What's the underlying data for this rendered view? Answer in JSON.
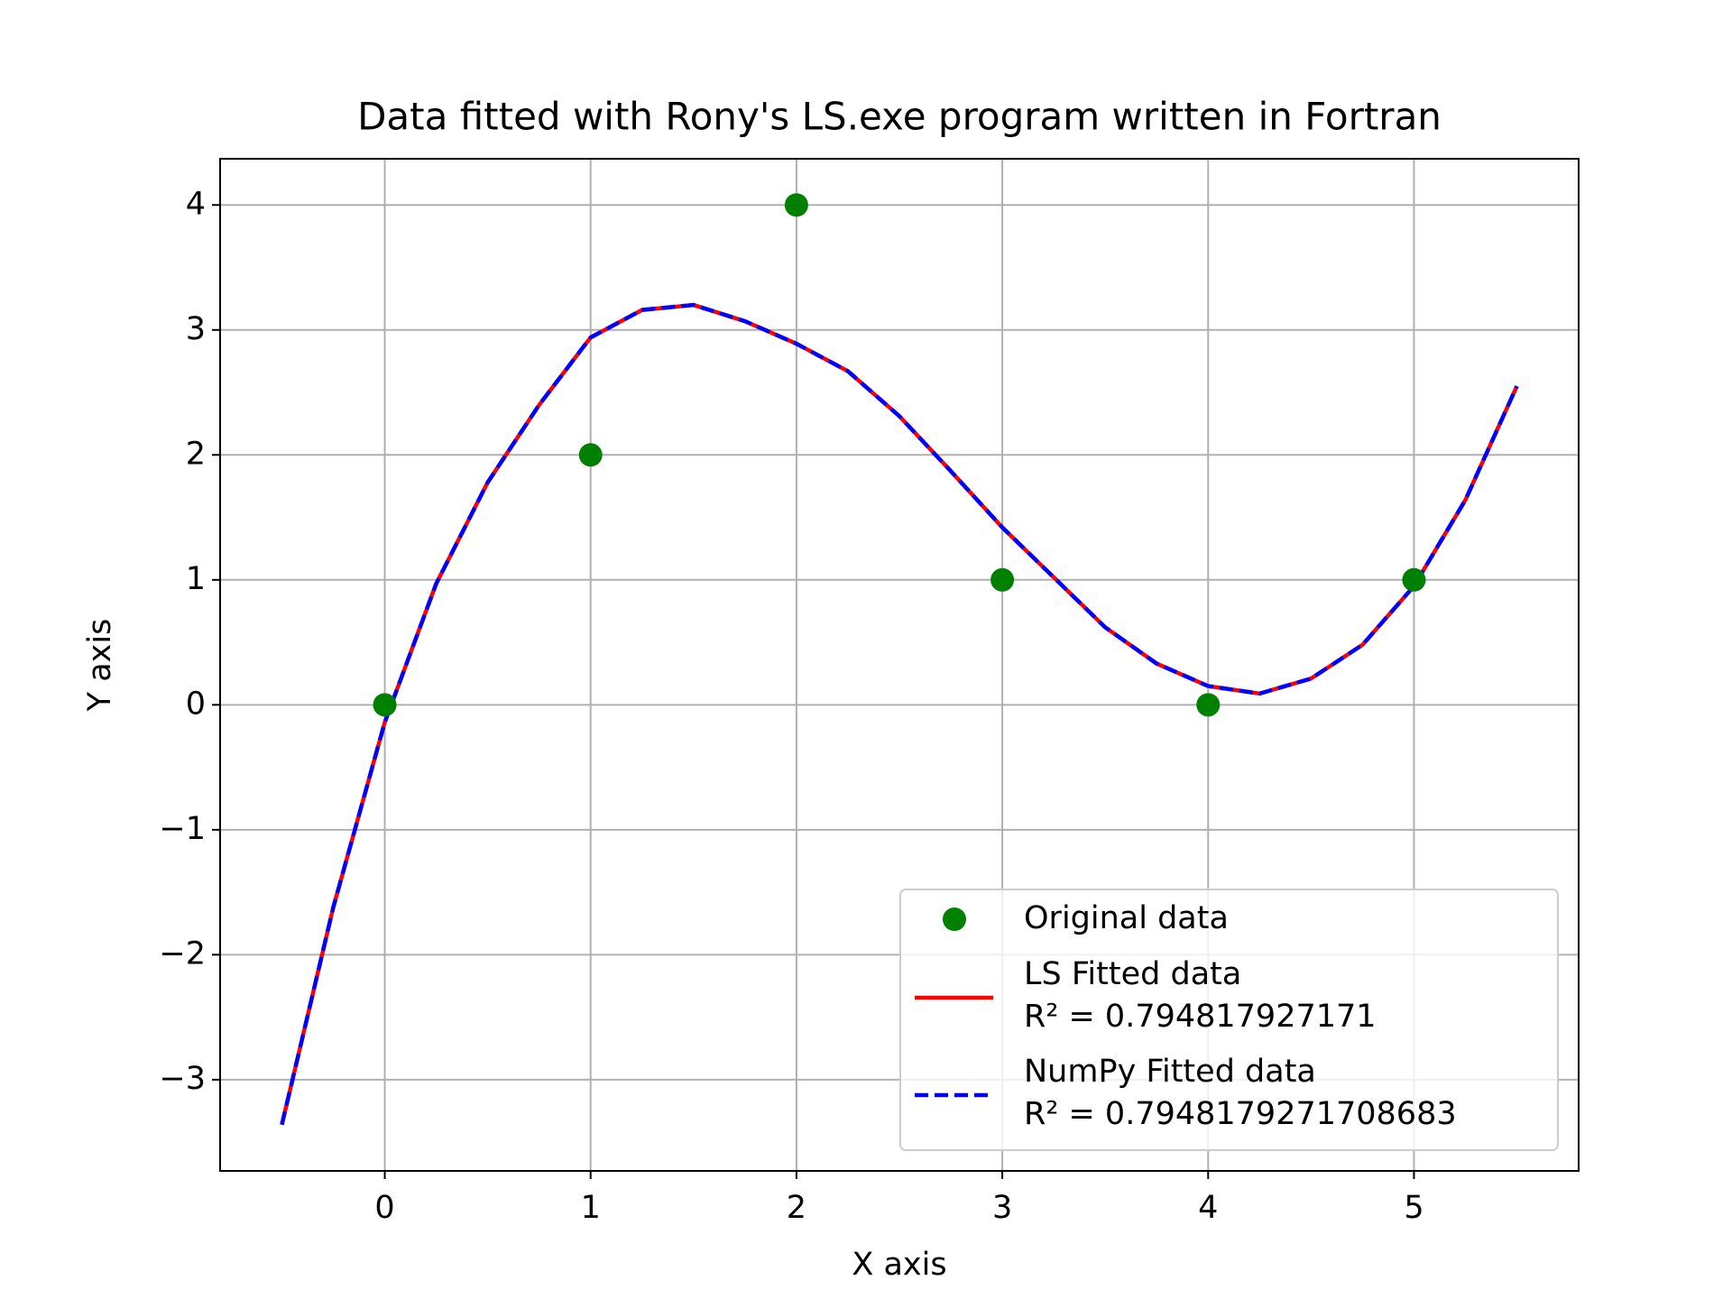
{
  "chart_data": {
    "type": "scatter-line",
    "title": "Data fitted with Rony's LS.exe program written in Fortran",
    "xlabel": "X axis",
    "ylabel": "Y axis",
    "xlim": [
      -0.8,
      5.8
    ],
    "ylim": [
      -3.73,
      4.37
    ],
    "xticks": [
      0,
      1,
      2,
      3,
      4,
      5
    ],
    "yticks": [
      {
        "value": -3,
        "label": "−3"
      },
      {
        "value": -2,
        "label": "−2"
      },
      {
        "value": -1,
        "label": "−1"
      },
      0,
      1,
      2,
      3,
      4
    ],
    "grid": true,
    "legend": "lower right",
    "points": {
      "name": "Original data",
      "color": "#008000",
      "x": [
        0,
        1,
        2,
        3,
        4,
        5
      ],
      "values": [
        0,
        2,
        4,
        1,
        0,
        1
      ]
    },
    "series": [
      {
        "name": "LS Fitted data",
        "annotation": "R² = 0.794817927171",
        "color": "#ff0000",
        "dashed": false,
        "x": [
          -0.5,
          -0.25,
          0,
          0.25,
          0.5,
          0.75,
          1,
          1.25,
          1.5,
          1.75,
          2,
          2.25,
          2.5,
          2.75,
          3,
          3.25,
          3.5,
          3.75,
          4,
          4.25,
          4.5,
          4.75,
          5,
          5.25,
          5.5
        ],
        "values": [
          -3.36,
          -1.62,
          -0.14,
          0.97,
          1.78,
          2.4,
          2.94,
          3.16,
          3.2,
          3.07,
          2.89,
          2.67,
          2.31,
          1.87,
          1.42,
          1.02,
          0.62,
          0.33,
          0.15,
          0.09,
          0.21,
          0.48,
          0.95,
          1.64,
          2.55
        ]
      },
      {
        "name": "NumPy Fitted data",
        "annotation": "R² = 0.7948179271708683",
        "color": "#0000ff",
        "dashed": true,
        "x": [
          -0.5,
          -0.25,
          0,
          0.25,
          0.5,
          0.75,
          1,
          1.25,
          1.5,
          1.75,
          2,
          2.25,
          2.5,
          2.75,
          3,
          3.25,
          3.5,
          3.75,
          4,
          4.25,
          4.5,
          4.75,
          5,
          5.25,
          5.5
        ],
        "values": [
          -3.36,
          -1.62,
          -0.14,
          0.97,
          1.78,
          2.4,
          2.94,
          3.16,
          3.2,
          3.07,
          2.89,
          2.67,
          2.31,
          1.87,
          1.42,
          1.02,
          0.62,
          0.33,
          0.15,
          0.09,
          0.21,
          0.48,
          0.95,
          1.64,
          2.55
        ]
      }
    ]
  }
}
